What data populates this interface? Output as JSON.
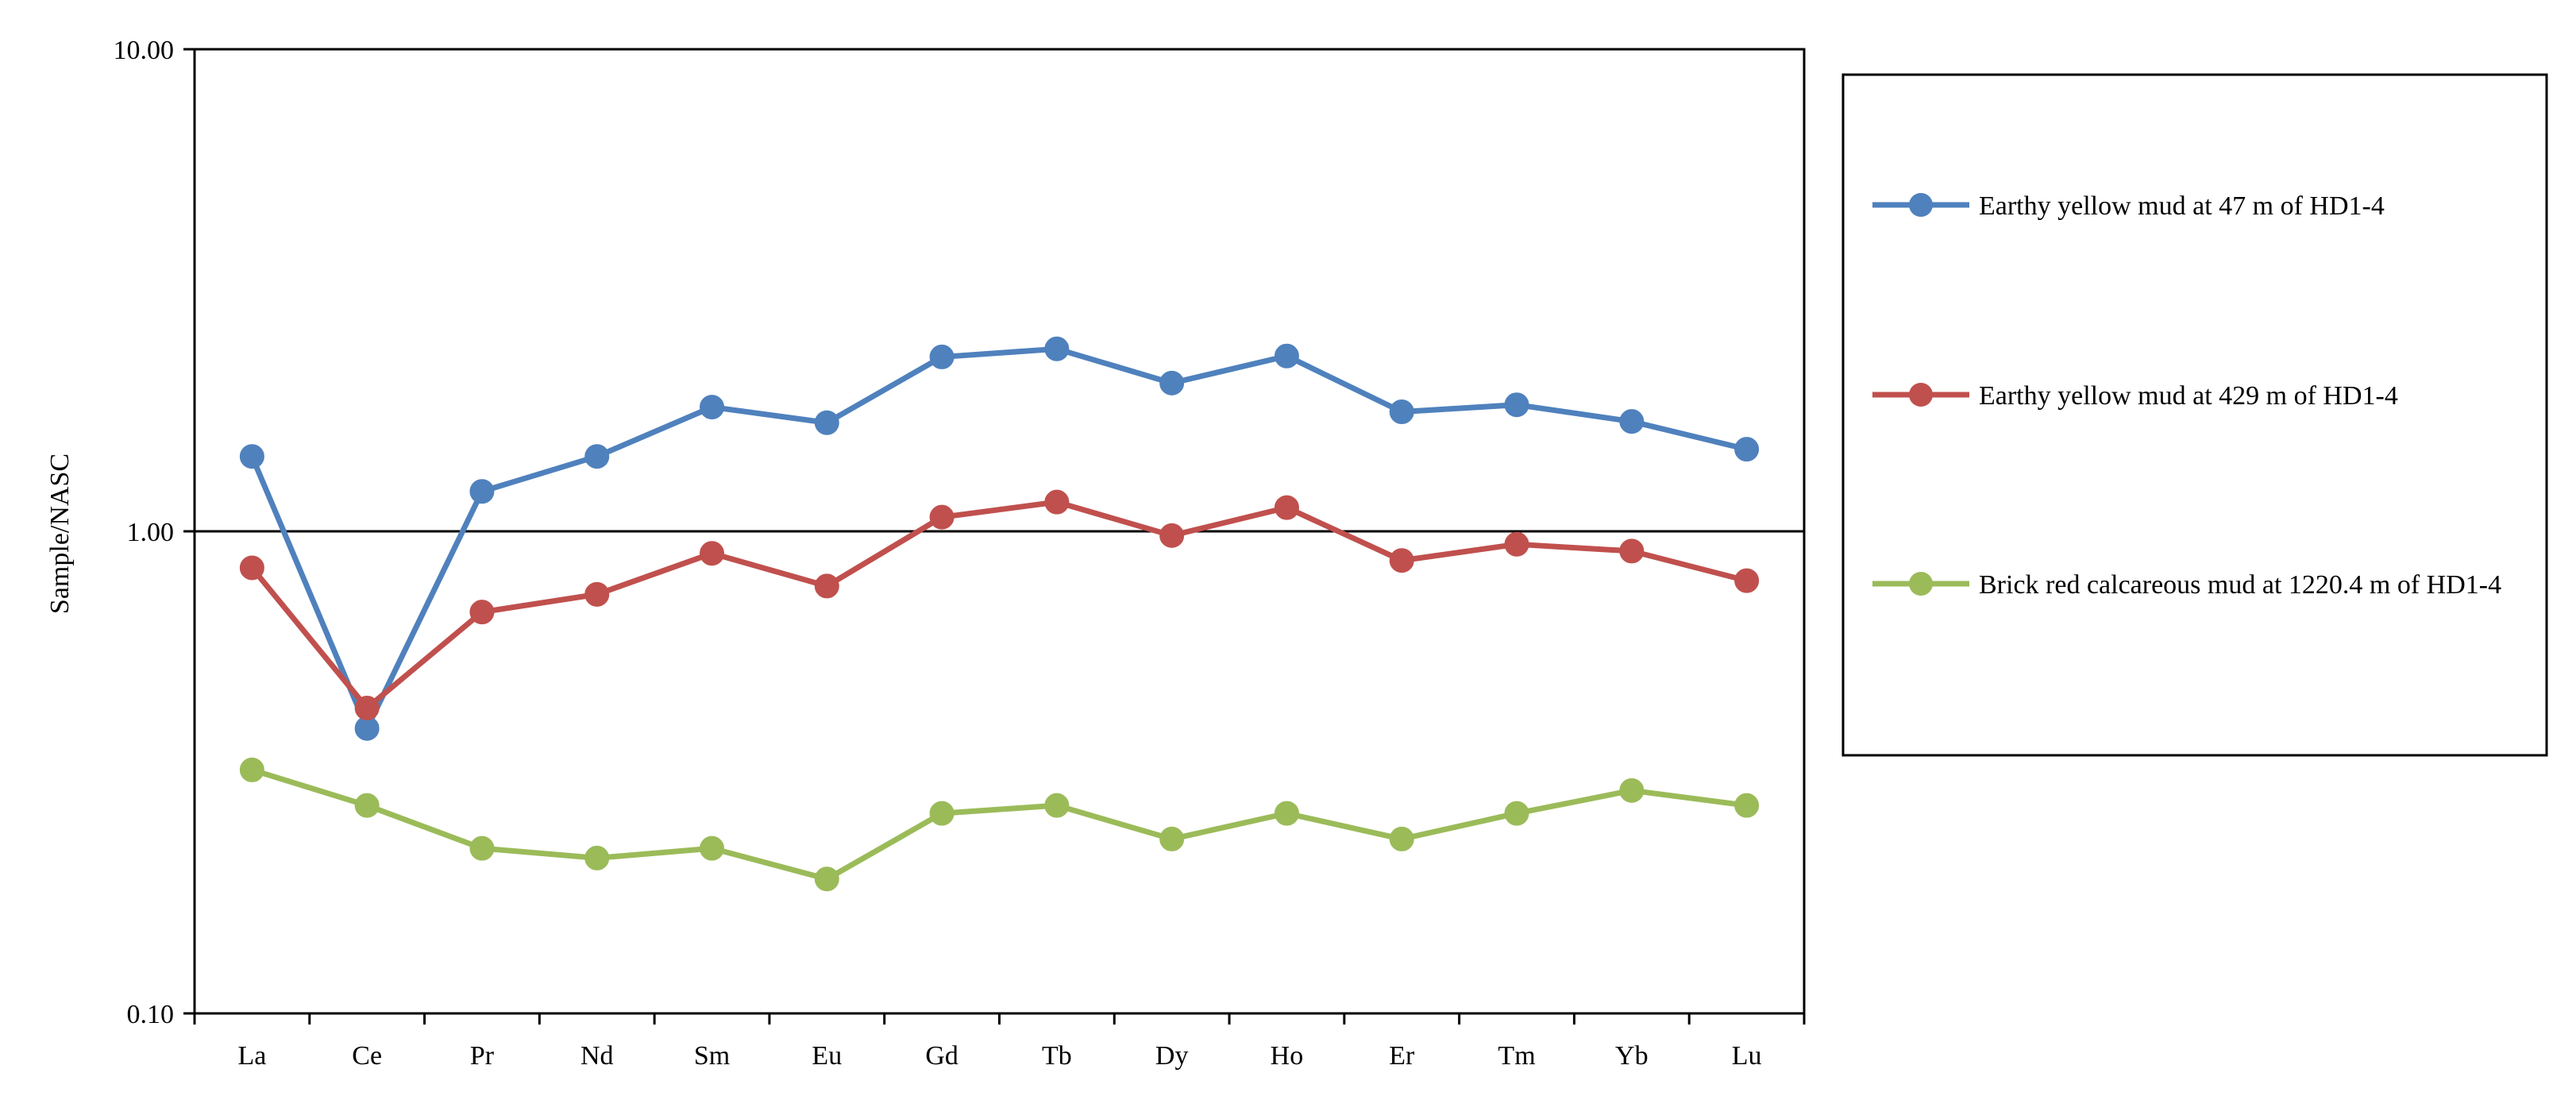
{
  "chart_data": {
    "type": "line",
    "title": "",
    "xlabel": "",
    "ylabel": "Sample/NASC",
    "yscale": "log",
    "ylim": [
      0.1,
      10
    ],
    "yticks": [
      "0.10",
      "1.00",
      "10.00"
    ],
    "reference_line": 1.0,
    "categories": [
      "La",
      "Ce",
      "Pr",
      "Nd",
      "Sm",
      "Eu",
      "Gd",
      "Tb",
      "Dy",
      "Ho",
      "Er",
      "Tm",
      "Yb",
      "Lu"
    ],
    "series": [
      {
        "name": "Earthy yellow mud at 47 m of HD1-4",
        "color": "#4F81BD",
        "values": [
          1.43,
          0.39,
          1.21,
          1.43,
          1.81,
          1.68,
          2.3,
          2.39,
          2.03,
          2.31,
          1.77,
          1.83,
          1.69,
          1.48
        ]
      },
      {
        "name": "Earthy yellow mud at 429 m of HD1-4",
        "color": "#C0504D",
        "values": [
          0.84,
          0.43,
          0.68,
          0.74,
          0.9,
          0.77,
          1.07,
          1.15,
          0.98,
          1.12,
          0.87,
          0.94,
          0.91,
          0.79
        ]
      },
      {
        "name": "Brick red calcareous mud at 1220.4 m of HD1-4",
        "color": "#9BBB59",
        "values": [
          0.32,
          0.27,
          0.22,
          0.21,
          0.22,
          0.19,
          0.26,
          0.27,
          0.23,
          0.26,
          0.23,
          0.26,
          0.29,
          0.27
        ]
      }
    ],
    "legend": "right",
    "grid": false
  }
}
